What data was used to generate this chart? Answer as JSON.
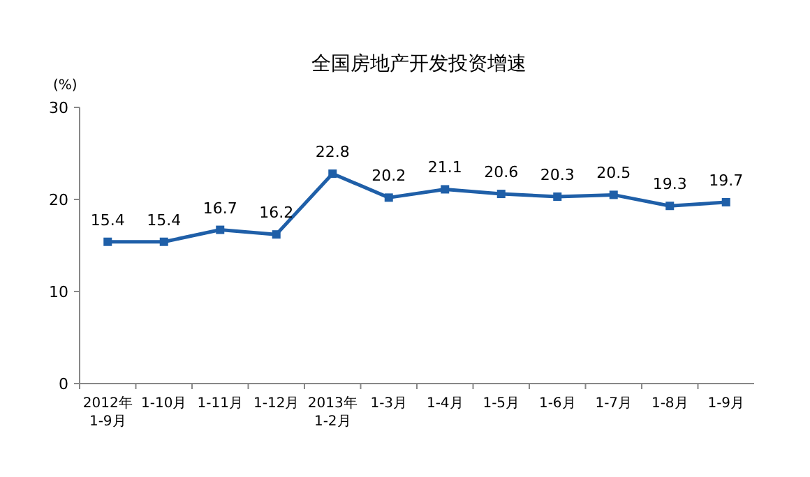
{
  "chart_data": {
    "type": "line",
    "title": "全国房地产开发投资增速",
    "ylabel": "(%)",
    "categories": [
      "2012年\n1-9月",
      "1-10月",
      "1-11月",
      "1-12月",
      "2013年\n1-2月",
      "1-3月",
      "1-4月",
      "1-5月",
      "1-6月",
      "1-7月",
      "1-8月",
      "1-9月"
    ],
    "values": [
      15.4,
      15.4,
      16.7,
      16.2,
      22.8,
      20.2,
      21.1,
      20.6,
      20.3,
      20.5,
      19.3,
      19.7
    ],
    "color": "#1f5fa8",
    "ylim": [
      0,
      30
    ],
    "yticks": [
      0,
      10,
      20,
      30
    ],
    "data_labels": true,
    "marker": "square",
    "grid": false
  }
}
